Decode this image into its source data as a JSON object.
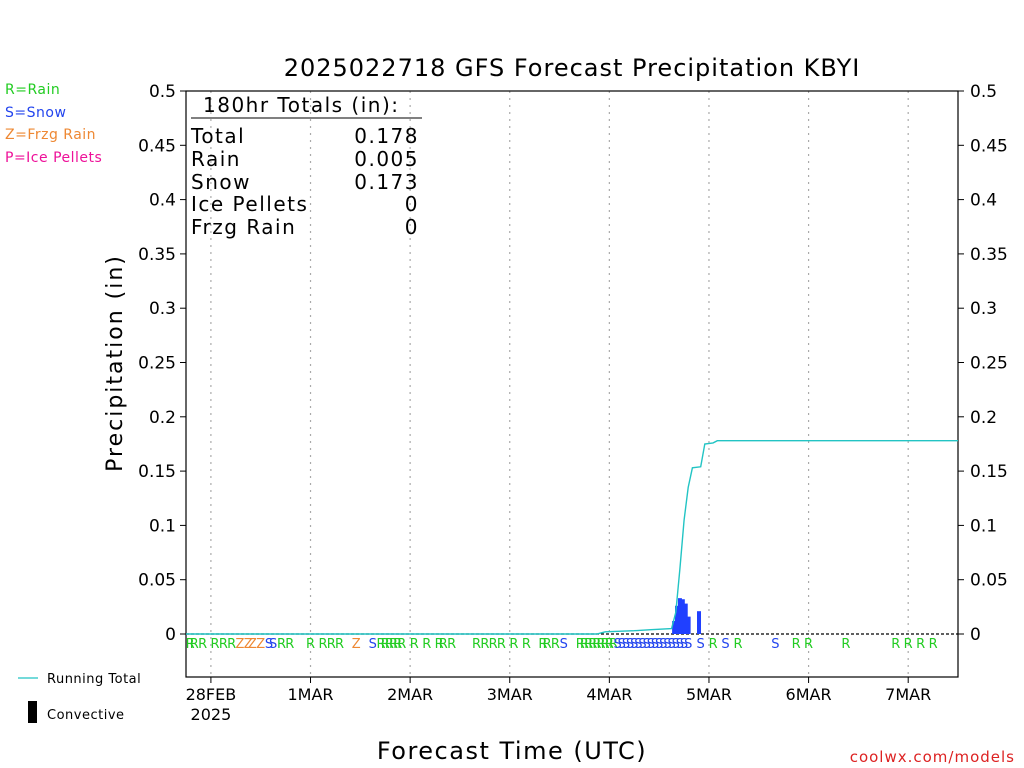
{
  "chart_data": {
    "type": "line",
    "title": "2025022718 GFS Forecast Precipitation KBYI",
    "xlabel": "Forecast Time (UTC)",
    "ylabel": "Precipitation (in)",
    "ylim": [
      0,
      0.5
    ],
    "yticks": [
      "0",
      "0.05",
      "0.1",
      "0.15",
      "0.2",
      "0.25",
      "0.3",
      "0.35",
      "0.4",
      "0.45",
      "0.5"
    ],
    "x_unit": "hours from 2025-02-27 18 UTC",
    "xlim": [
      0,
      186
    ],
    "x_date_ticks": [
      {
        "label": "28FEB",
        "sublabel": "2025",
        "hour": 6
      },
      {
        "label": "1MAR",
        "hour": 30
      },
      {
        "label": "2MAR",
        "hour": 54
      },
      {
        "label": "3MAR",
        "hour": 78
      },
      {
        "label": "4MAR",
        "hour": 102
      },
      {
        "label": "5MAR",
        "hour": 126
      },
      {
        "label": "6MAR",
        "hour": 150
      },
      {
        "label": "7MAR",
        "hour": 174
      }
    ],
    "grid": "vertical dotted at each date",
    "series": [
      {
        "name": "Running Total",
        "color": "#22c4c4",
        "points": [
          [
            0,
            0
          ],
          [
            99,
            0
          ],
          [
            101,
            0.002
          ],
          [
            108,
            0.003
          ],
          [
            112,
            0.004
          ],
          [
            117,
            0.005
          ],
          [
            118,
            0.02
          ],
          [
            119,
            0.06
          ],
          [
            120,
            0.105
          ],
          [
            121,
            0.135
          ],
          [
            122,
            0.153
          ],
          [
            124,
            0.154
          ],
          [
            125,
            0.175
          ],
          [
            127,
            0.176
          ],
          [
            128,
            0.178
          ],
          [
            186,
            0.178
          ]
        ]
      },
      {
        "name": "Convective",
        "type": "bar",
        "color": "#2040ff",
        "values": [
          [
            117.6,
            0.012
          ],
          [
            118.3,
            0.026
          ],
          [
            119.0,
            0.033
          ],
          [
            119.7,
            0.032
          ],
          [
            120.4,
            0.028
          ],
          [
            121.1,
            0.016
          ],
          [
            123.6,
            0.021
          ]
        ]
      }
    ],
    "precip_types_strip": [
      {
        "type": "R",
        "hour": 1
      },
      {
        "type": "R",
        "hour": 2
      },
      {
        "type": "R",
        "hour": 4
      },
      {
        "type": "R",
        "hour": 7
      },
      {
        "type": "R",
        "hour": 9
      },
      {
        "type": "R",
        "hour": 11
      },
      {
        "type": "Z",
        "hour": 13
      },
      {
        "type": "Z",
        "hour": 15
      },
      {
        "type": "Z",
        "hour": 16
      },
      {
        "type": "Z",
        "hour": 18
      },
      {
        "type": "S",
        "hour": 20
      },
      {
        "type": "S",
        "hour": 21
      },
      {
        "type": "R",
        "hour": 23
      },
      {
        "type": "R",
        "hour": 25
      },
      {
        "type": "R",
        "hour": 30
      },
      {
        "type": "R",
        "hour": 33
      },
      {
        "type": "R",
        "hour": 35
      },
      {
        "type": "R",
        "hour": 37
      },
      {
        "type": "Z",
        "hour": 41
      },
      {
        "type": "S",
        "hour": 45
      },
      {
        "type": "R",
        "hour": 47
      },
      {
        "type": "R",
        "hour": 48
      },
      {
        "type": "R",
        "hour": 49
      },
      {
        "type": "R",
        "hour": 50
      },
      {
        "type": "R",
        "hour": 51
      },
      {
        "type": "R",
        "hour": 52
      },
      {
        "type": "R",
        "hour": 55
      },
      {
        "type": "R",
        "hour": 58
      },
      {
        "type": "R",
        "hour": 61
      },
      {
        "type": "R",
        "hour": 62
      },
      {
        "type": "R",
        "hour": 64
      },
      {
        "type": "R",
        "hour": 70
      },
      {
        "type": "R",
        "hour": 72
      },
      {
        "type": "R",
        "hour": 74
      },
      {
        "type": "R",
        "hour": 76
      },
      {
        "type": "R",
        "hour": 79
      },
      {
        "type": "R",
        "hour": 82
      },
      {
        "type": "R",
        "hour": 86
      },
      {
        "type": "R",
        "hour": 87
      },
      {
        "type": "R",
        "hour": 89
      },
      {
        "type": "S",
        "hour": 91
      },
      {
        "type": "R",
        "hour": 95
      },
      {
        "type": "R",
        "hour": 96
      },
      {
        "type": "R",
        "hour": 97
      },
      {
        "type": "R",
        "hour": 98
      },
      {
        "type": "R",
        "hour": 99
      },
      {
        "type": "R",
        "hour": 100
      },
      {
        "type": "R",
        "hour": 101
      },
      {
        "type": "R",
        "hour": 102
      },
      {
        "type": "R",
        "hour": 103
      },
      {
        "type": "S",
        "hour": 104
      },
      {
        "type": "S",
        "hour": 105
      },
      {
        "type": "S",
        "hour": 106
      },
      {
        "type": "S",
        "hour": 107
      },
      {
        "type": "S",
        "hour": 108
      },
      {
        "type": "S",
        "hour": 109
      },
      {
        "type": "S",
        "hour": 110
      },
      {
        "type": "S",
        "hour": 111
      },
      {
        "type": "S",
        "hour": 112
      },
      {
        "type": "S",
        "hour": 113
      },
      {
        "type": "S",
        "hour": 114
      },
      {
        "type": "S",
        "hour": 115
      },
      {
        "type": "S",
        "hour": 116
      },
      {
        "type": "S",
        "hour": 117
      },
      {
        "type": "S",
        "hour": 118
      },
      {
        "type": "S",
        "hour": 119
      },
      {
        "type": "S",
        "hour": 120
      },
      {
        "type": "S",
        "hour": 121
      },
      {
        "type": "S",
        "hour": 124
      },
      {
        "type": "R",
        "hour": 127
      },
      {
        "type": "S",
        "hour": 130
      },
      {
        "type": "R",
        "hour": 133
      },
      {
        "type": "S",
        "hour": 142
      },
      {
        "type": "R",
        "hour": 147
      },
      {
        "type": "R",
        "hour": 150
      },
      {
        "type": "R",
        "hour": 159
      },
      {
        "type": "R",
        "hour": 171
      },
      {
        "type": "R",
        "hour": 174
      },
      {
        "type": "R",
        "hour": 177
      },
      {
        "type": "R",
        "hour": 180
      }
    ]
  },
  "totals_box": {
    "header": "180hr Totals (in):",
    "rows": [
      {
        "label": "Total",
        "value": "0.178"
      },
      {
        "label": "Rain",
        "value": "0.005"
      },
      {
        "label": "Snow",
        "value": "0.173"
      },
      {
        "label": "Ice Pellets",
        "value": "0"
      },
      {
        "label": "Frzg Rain",
        "value": "0"
      }
    ]
  },
  "type_legend": [
    {
      "text": "R=Rain",
      "color": "#22cc22"
    },
    {
      "text": "S=Snow",
      "color": "#2244ee"
    },
    {
      "text": "Z=Frzg Rain",
      "color": "#ee8833"
    },
    {
      "text": "P=Ice Pellets",
      "color": "#ee1199"
    }
  ],
  "bottom_legend": {
    "running_total": "Running Total",
    "convective": "Convective"
  },
  "credit": "coolwx.com/models",
  "colors": {
    "rain": "#22cc22",
    "snow": "#2244ee",
    "frzg": "#ee8833",
    "ice": "#ee1199",
    "line": "#22c4c4",
    "bar": "#2040ff",
    "credit": "#dd2222"
  }
}
